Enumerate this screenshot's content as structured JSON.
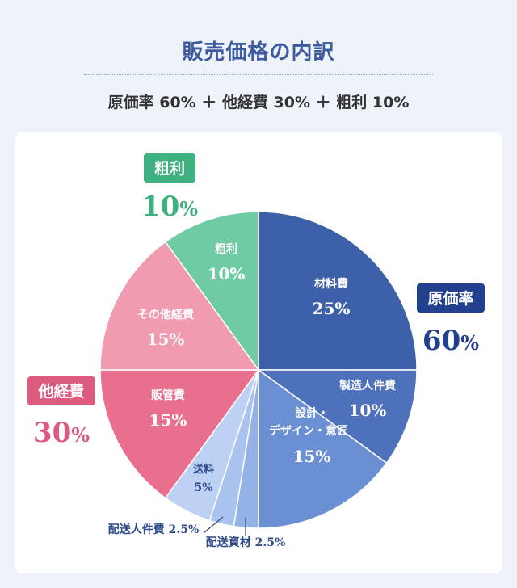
{
  "header": {
    "title": "販売価格の内訳",
    "formula": "原価率 60% ＋ 他経費 30% ＋ 粗利 10%"
  },
  "colors": {
    "blue_dark": "#3c61a8",
    "blue_mid": "#4d72bb",
    "blue_light": "#6a8fd2",
    "blue_pale1": "#94b2e6",
    "blue_pale2": "#a9c2ee",
    "blue_pale3": "#bdd1f4",
    "pink_dark": "#e8708e",
    "pink_light": "#f09bb0",
    "green": "#6fcba4",
    "group_blue": "#22408e",
    "group_pink": "#dc5c80",
    "group_green": "#3fb07f"
  },
  "chart_data": {
    "type": "pie",
    "title": "販売価格の内訳",
    "unit": "%",
    "slices": [
      {
        "label": "材料費",
        "value": 25,
        "group": "原価率"
      },
      {
        "label": "製造人件費",
        "value": 10,
        "group": "原価率"
      },
      {
        "label": "設計・デザイン・意匠",
        "value": 15,
        "group": "原価率"
      },
      {
        "label": "配送資材",
        "value": 2.5,
        "group": "原価率"
      },
      {
        "label": "配送人件費",
        "value": 2.5,
        "group": "原価率"
      },
      {
        "label": "送料",
        "value": 5,
        "group": "原価率"
      },
      {
        "label": "販管費",
        "value": 15,
        "group": "他経費"
      },
      {
        "label": "その他経費",
        "value": 15,
        "group": "他経費"
      },
      {
        "label": "粗利",
        "value": 10,
        "group": "粗利"
      }
    ],
    "groups": [
      {
        "name": "原価率",
        "value": 60
      },
      {
        "name": "他経費",
        "value": 30
      },
      {
        "name": "粗利",
        "value": 10
      }
    ]
  }
}
